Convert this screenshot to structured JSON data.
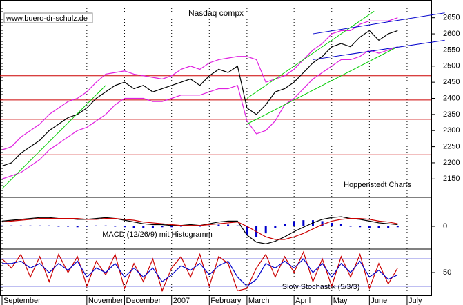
{
  "chart_data": [
    {
      "type": "line",
      "title": "Nasdaq compx",
      "watermark": "www.buero-dr-schulz.de",
      "annotation": "Hoppenstedt Charts",
      "categories": [
        "September",
        null,
        null,
        null,
        null,
        null,
        null,
        null,
        null,
        "November",
        null,
        null,
        null,
        "December",
        null,
        null,
        null,
        null,
        "2007",
        null,
        null,
        null,
        "February",
        null,
        null,
        null,
        "March",
        null,
        null,
        null,
        null,
        "April",
        null,
        null,
        null,
        "May",
        null,
        null,
        null,
        "June",
        null,
        null,
        null,
        "July"
      ],
      "ylim": [
        2095,
        2705
      ],
      "yticks": [
        2150,
        2200,
        2250,
        2300,
        2350,
        2400,
        2450,
        2500,
        2550,
        2600,
        2650
      ],
      "hlines": [
        2470,
        2395,
        2335,
        2225
      ],
      "hline_color": "#cc0000",
      "series": [
        {
          "color": "#000000",
          "values": [
            2190,
            2200,
            2230,
            2250,
            2270,
            2300,
            2320,
            2340,
            2350,
            2370,
            2400,
            2420,
            2440,
            2450,
            2430,
            2440,
            2420,
            2430,
            2440,
            2450,
            2460,
            2440,
            2470,
            2490,
            2480,
            2500,
            2370,
            2350,
            2380,
            2420,
            2430,
            2450,
            2480,
            2510,
            2530,
            2560,
            2570,
            2560,
            2590,
            2610,
            2580,
            2600,
            2610,
            null
          ]
        },
        {
          "color": "#e020e0",
          "values": [
            2240,
            2250,
            2280,
            2300,
            2320,
            2350,
            2370,
            2390,
            2400,
            2420,
            2450,
            2475,
            2480,
            2485,
            2475,
            2470,
            2465,
            2460,
            2470,
            2490,
            2500,
            2490,
            2510,
            2520,
            2525,
            2530,
            2530,
            2520,
            2450,
            2460,
            2470,
            2490,
            2520,
            2550,
            2570,
            2600,
            2610,
            2610,
            2630,
            2640,
            2640,
            2640,
            2650,
            null
          ]
        },
        {
          "color": "#e020e0",
          "values": [
            2150,
            2160,
            2170,
            2190,
            2210,
            2240,
            2260,
            2280,
            2300,
            2310,
            2330,
            2350,
            2380,
            2400,
            2400,
            2400,
            2390,
            2390,
            2400,
            2410,
            2410,
            2410,
            2420,
            2430,
            2430,
            2440,
            2330,
            2290,
            2300,
            2330,
            2380,
            2400,
            2430,
            2460,
            2480,
            2500,
            2520,
            2520,
            2530,
            2550,
            2540,
            2550,
            2560,
            null
          ]
        }
      ],
      "trendlines": [
        {
          "color": "#00cc00",
          "x": [
            0,
            11
          ],
          "y": [
            2120,
            2440
          ]
        },
        {
          "color": "#00cc00",
          "x": [
            26,
            39.5
          ],
          "y": [
            2400,
            2670
          ]
        },
        {
          "color": "#00cc00",
          "x": [
            26,
            42
          ],
          "y": [
            2320,
            2560
          ]
        },
        {
          "color": "#0000cc",
          "x": [
            33,
            47
          ],
          "y": [
            2600,
            2665
          ]
        },
        {
          "color": "#0000cc",
          "x": [
            33,
            47
          ],
          "y": [
            2520,
            2580
          ]
        }
      ]
    },
    {
      "type": "line",
      "title": "MACD (12/26/9) mit Histogramm",
      "ylim": [
        -30,
        30
      ],
      "yticks": [
        0
      ],
      "series": [
        {
          "kind": "bar",
          "color": "#0000cc",
          "values": [
            1,
            1,
            1,
            1,
            1,
            1,
            0,
            0,
            -1,
            0,
            1,
            1,
            0,
            -1,
            -2,
            -2,
            -2,
            -1,
            -1,
            0,
            1,
            0,
            1,
            2,
            2,
            1,
            -10,
            -12,
            -8,
            -2,
            3,
            6,
            7,
            7,
            6,
            4,
            3,
            0,
            -1,
            -2,
            -2,
            -2,
            -1,
            null
          ]
        },
        {
          "color": "#000000",
          "values": [
            6,
            7,
            8,
            9,
            10,
            10,
            9,
            9,
            8,
            8,
            9,
            10,
            9,
            7,
            5,
            3,
            2,
            2,
            1,
            1,
            2,
            1,
            3,
            5,
            6,
            6,
            -10,
            -18,
            -20,
            -17,
            -12,
            -6,
            -1,
            4,
            8,
            10,
            11,
            9,
            8,
            6,
            4,
            3,
            2,
            null
          ]
        },
        {
          "color": "#cc0000",
          "values": [
            5,
            6,
            7,
            8,
            9,
            9,
            9,
            9,
            9,
            8,
            8,
            9,
            9,
            8,
            7,
            5,
            4,
            3,
            2,
            1,
            1,
            1,
            2,
            3,
            4,
            5,
            0,
            -6,
            -12,
            -15,
            -15,
            -12,
            -8,
            -3,
            2,
            6,
            8,
            9,
            9,
            8,
            6,
            5,
            3,
            null
          ]
        }
      ]
    },
    {
      "type": "line",
      "title": "Slow Stochastik (5/3/3)",
      "ylim": [
        0,
        100
      ],
      "yticks": [
        50
      ],
      "hlines": [
        80,
        20
      ],
      "hline_color": "#0000cc",
      "series": [
        {
          "color": "#cc0000",
          "values": [
            80,
            60,
            90,
            40,
            85,
            30,
            90,
            50,
            85,
            20,
            75,
            45,
            90,
            15,
            70,
            30,
            80,
            10,
            60,
            85,
            40,
            90,
            20,
            85,
            70,
            10,
            15,
            60,
            90,
            40,
            85,
            50,
            95,
            30,
            80,
            20,
            85,
            40,
            90,
            15,
            70,
            25,
            60,
            null
          ]
        },
        {
          "color": "#0000cc",
          "values": [
            70,
            70,
            75,
            60,
            70,
            50,
            70,
            55,
            75,
            40,
            60,
            50,
            70,
            40,
            60,
            40,
            60,
            30,
            45,
            65,
            55,
            70,
            45,
            65,
            75,
            40,
            20,
            35,
            70,
            60,
            75,
            60,
            80,
            50,
            70,
            40,
            70,
            50,
            75,
            40,
            55,
            35,
            45,
            null
          ]
        }
      ]
    }
  ]
}
